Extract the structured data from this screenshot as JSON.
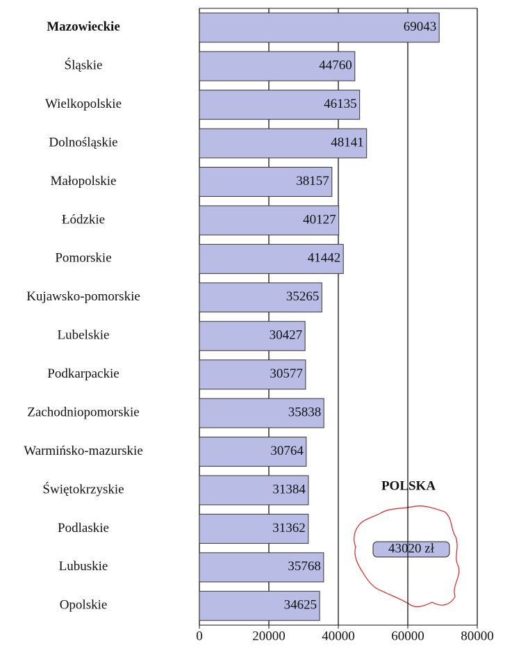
{
  "chart_data": {
    "type": "hbar",
    "categories": [
      "Mazowieckie",
      "Śląskie",
      "Wielkopolskie",
      "Dolnośląskie",
      "Małopolskie",
      "Łódzkie",
      "Pomorskie",
      "Kujawsko-pomorskie",
      "Lubelskie",
      "Podkarpackie",
      "Zachodniopomorskie",
      "Warmińsko-mazurskie",
      "Świętokrzyskie",
      "Podlaskie",
      "Lubuskie",
      "Opolskie"
    ],
    "values": [
      69043,
      44760,
      46135,
      48141,
      38157,
      40127,
      41442,
      35265,
      30427,
      30577,
      35838,
      30764,
      31384,
      31362,
      35768,
      34625
    ],
    "color": "#b9bde6",
    "highlight_index": 0,
    "xlim": [
      0,
      80000
    ],
    "xticks": [
      0,
      20000,
      40000,
      60000,
      80000
    ],
    "grid": true,
    "annotation": {
      "title": "POLSKA",
      "label": "43020 zł"
    }
  }
}
